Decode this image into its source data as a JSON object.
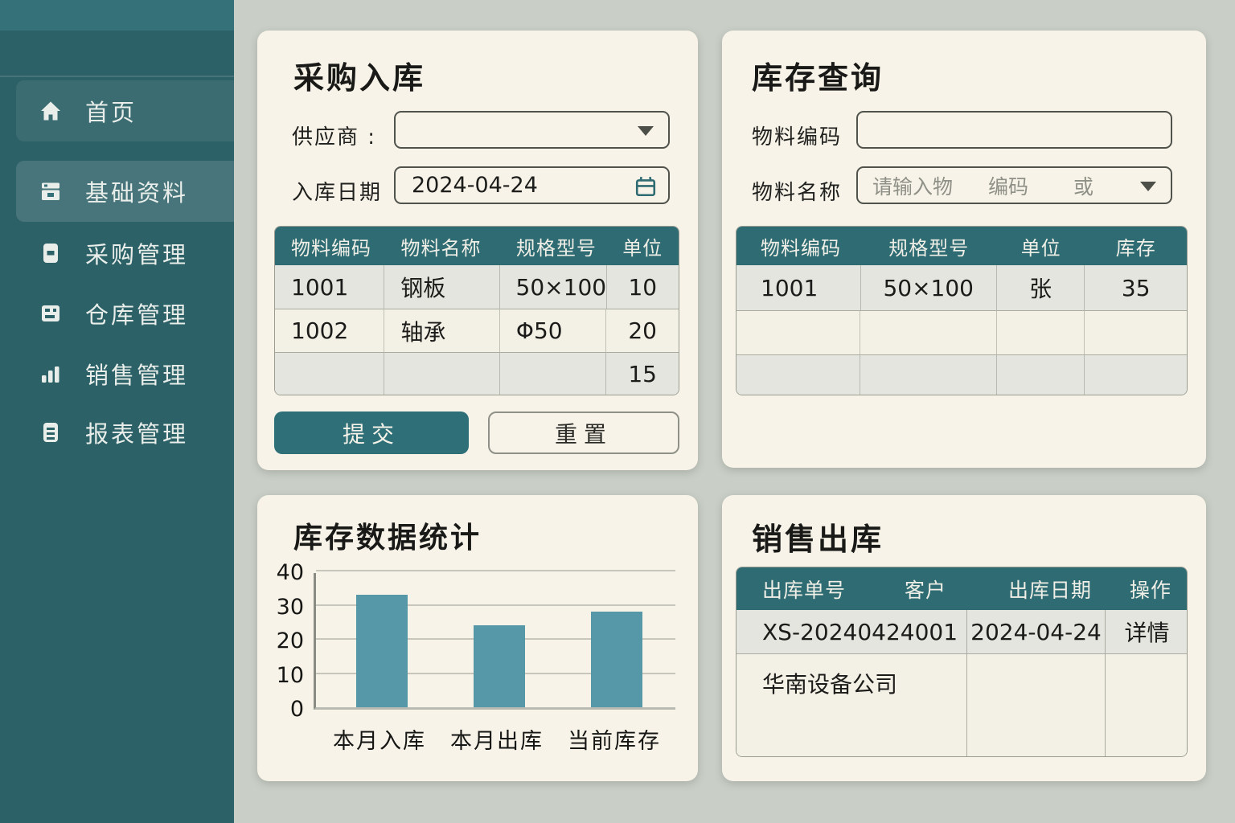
{
  "colors": {
    "sidebar_bg": "#2d6168",
    "sidebar_top": "#357179",
    "accent_teal": "#2e6b72",
    "panel_bg": "#f7f3e8",
    "page_bg": "#c9cfc7",
    "bar_color": "#5697a8",
    "row_alt": "#e4e5df",
    "row_base": "#f3f0e5"
  },
  "sidebar": {
    "items": [
      {
        "label": "首页",
        "icon": "home-icon",
        "active": false
      },
      {
        "label": "基础资料",
        "icon": "archive-icon",
        "active": true
      },
      {
        "label": "采购管理",
        "icon": "document-icon",
        "active": false
      },
      {
        "label": "仓库管理",
        "icon": "package-icon",
        "active": false
      },
      {
        "label": "销售管理",
        "icon": "bar-chart-icon",
        "active": false
      },
      {
        "label": "报表管理",
        "icon": "report-icon",
        "active": false
      }
    ]
  },
  "purchase_panel": {
    "title": "采购入库",
    "supplier_label": "供应商 :",
    "supplier_value": "",
    "date_label": "入库日期",
    "date_value": "2024-04-24",
    "table": {
      "headers": [
        "物料编码",
        "物料名称",
        "规格型号",
        "单位"
      ],
      "rows": [
        [
          "1001",
          "钢板",
          "50×100",
          "10"
        ],
        [
          "1002",
          "轴承",
          "Φ50",
          "20"
        ],
        [
          "",
          "",
          "",
          "15"
        ]
      ]
    },
    "submit_label": "提交",
    "reset_label": "重置"
  },
  "inventory_panel": {
    "title": "库存查询",
    "code_label": "物料编码",
    "code_value": "",
    "name_label": "物料名称",
    "name_placeholder_parts": [
      "请输入物",
      "编码",
      "或"
    ],
    "table": {
      "headers": [
        "物料编码",
        "规格型号",
        "单位",
        "库存"
      ],
      "rows": [
        [
          "1001",
          "50×100",
          "张",
          "35"
        ],
        [
          "",
          "",
          "",
          ""
        ],
        [
          "",
          "",
          "",
          ""
        ]
      ]
    }
  },
  "stats_panel": {
    "title": "库存数据统计"
  },
  "chart_data": {
    "type": "bar",
    "title": "库存数据统计",
    "categories": [
      "本月入库",
      "本月出库",
      "当前库存"
    ],
    "values": [
      33,
      24,
      28
    ],
    "xlabel": "",
    "ylabel": "",
    "ylim": [
      0,
      40
    ],
    "yticks": [
      0,
      10,
      20,
      30,
      40
    ],
    "bar_color": "#5697a8",
    "grid": true,
    "legend": false
  },
  "sales_panel": {
    "title": "销售出库",
    "table": {
      "headers": [
        "出库单号",
        "客户",
        "出库日期",
        "操作"
      ],
      "row1": [
        "XS-20240424001",
        "2024-04-24",
        "详情"
      ],
      "row2": [
        "华南设备公司",
        "",
        ""
      ]
    }
  }
}
